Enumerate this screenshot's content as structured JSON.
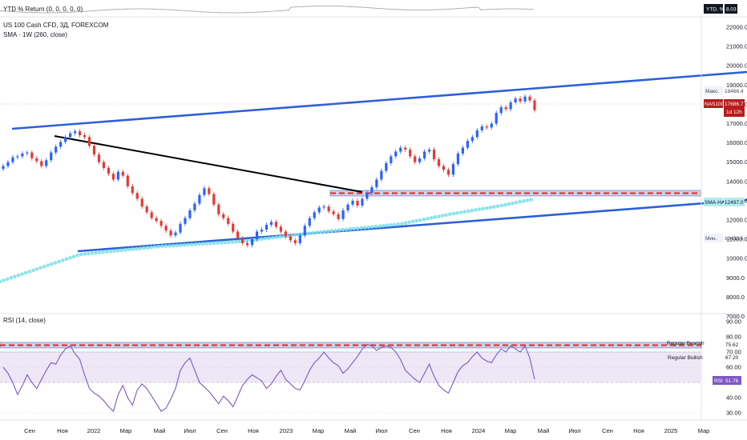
{
  "ytd_panel": {
    "label": "YTD % Return (0, 0, 0, 0, 0)",
    "badge_name": "YTD, %",
    "badge_value": "8.03"
  },
  "main_panel": {
    "title": "US 100 Cash CFD, 3Д, FOREXCOM",
    "sma_label": "SMA · 1W (260, close)",
    "price_ticks": [
      "22000.0",
      "21000.0",
      "20000.0",
      "19000.0",
      "18000.0",
      "17000.0",
      "16000.0",
      "15000.0",
      "14000.0",
      "13000.0",
      "12000.0",
      "11000.0",
      "10000.0",
      "9000.0",
      "8000.0",
      "7000.0"
    ],
    "tag_max_label": "Макс.",
    "tag_max_value": "18466.4",
    "tag_symbol": "NAS100",
    "tag_price": "17686.7",
    "tag_countdown": "1d 12h",
    "tag_sma_label": "SMA·HA",
    "tag_sma_value": "12497.0",
    "tag_min_label": "Мин.",
    "tag_min_value": "10432.5"
  },
  "rsi_panel": {
    "label": "RSI (14, close)",
    "ticks": [
      "90.00",
      "80.00",
      "70.00",
      "60.00",
      "50.00",
      "40.00",
      "30.00"
    ],
    "bearish_label": "Regular Bearish",
    "bearish_value": "75.62",
    "bullish_label": "Regular Bullish",
    "bullish_value": "67.20",
    "rsi_tag_label": "RSI",
    "rsi_tag_value": "51.78"
  },
  "time_axis": [
    "Сен",
    "Ноя",
    "2022",
    "Мар",
    "Май",
    "Июл",
    "Сен",
    "Ноя",
    "2023",
    "Мар",
    "Май",
    "Июл",
    "Сен",
    "Ноя",
    "2024",
    "Мар",
    "Май",
    "Июл",
    "Сен",
    "Ноя",
    "2025",
    "Мар"
  ],
  "colors": {
    "up": "#2962ff",
    "down": "#e53935",
    "trend_blue": "#2d5fd6",
    "trend_black": "#000000",
    "sma": "#7fe0ea",
    "zone_fill": "#c7d3ef",
    "zone_dash": "#e53935",
    "rsi_line": "#7e57c2",
    "rsi_band": "#ede7f6",
    "price_tag": "#b71c1c"
  },
  "chart_data": [
    {
      "type": "line",
      "title": "US 100 Cash CFD, 3Д, FOREXCOM",
      "series": [
        {
          "name": "US 100 Cash CFD",
          "values": [
            14800,
            15000,
            15250,
            15300,
            15450,
            15500,
            15200,
            15050,
            14800,
            15100,
            15500,
            15800,
            16050,
            16300,
            16500,
            16600,
            16400,
            16300,
            15850,
            15400,
            15000,
            14700,
            14400,
            14100,
            14500,
            14300,
            13750,
            13400,
            13100,
            12700,
            12400,
            12100,
            11950,
            11700,
            11450,
            11200,
            11350,
            11800,
            12100,
            12500,
            12850,
            13300,
            13650,
            13350,
            12800,
            12300,
            12100,
            11800,
            11400,
            11050,
            10800,
            10700,
            11000,
            11400,
            11500,
            11750,
            11900,
            11650,
            11400,
            11150,
            10950,
            10800,
            11200,
            11700,
            12100,
            12400,
            12650,
            12700,
            12450,
            12300,
            12050,
            12500,
            12800,
            13000,
            12750,
            13100,
            13400,
            13700,
            14100,
            14550,
            14950,
            15300,
            15550,
            15750,
            15650,
            15300,
            15000,
            15200,
            15550,
            15650,
            15150,
            14800,
            14600,
            14350,
            14900,
            15450,
            15750,
            16100,
            16300,
            16650,
            16850,
            16800,
            17000,
            17550,
            17850,
            17750,
            18100,
            18300,
            18150,
            18400,
            18200,
            17700
          ]
        }
      ],
      "ylim": [
        7000,
        22000
      ]
    },
    {
      "type": "line",
      "title": "RSI (14, close)",
      "series": [
        {
          "name": "RSI",
          "values": [
            60,
            56,
            50,
            42,
            48,
            55,
            50,
            46,
            52,
            58,
            63,
            62,
            68,
            72,
            74,
            69,
            65,
            55,
            46,
            43,
            41,
            38,
            34,
            31,
            42,
            48,
            40,
            35,
            45,
            49,
            46,
            41,
            36,
            31,
            33,
            39,
            46,
            58,
            63,
            66,
            58,
            50,
            47,
            44,
            40,
            36,
            41,
            38,
            34,
            41,
            48,
            52,
            55,
            53,
            51,
            46,
            49,
            54,
            58,
            52,
            49,
            46,
            45,
            51,
            58,
            63,
            66,
            70,
            66,
            63,
            61,
            56,
            59,
            63,
            67,
            72,
            75,
            74,
            71,
            73,
            74,
            73,
            70,
            65,
            58,
            55,
            52,
            50,
            56,
            62,
            54,
            48,
            45,
            43,
            50,
            57,
            61,
            63,
            67,
            70,
            66,
            64,
            63,
            68,
            72,
            70,
            74,
            72,
            70,
            74,
            66,
            52
          ]
        }
      ],
      "ylim": [
        30,
        90
      ]
    }
  ]
}
